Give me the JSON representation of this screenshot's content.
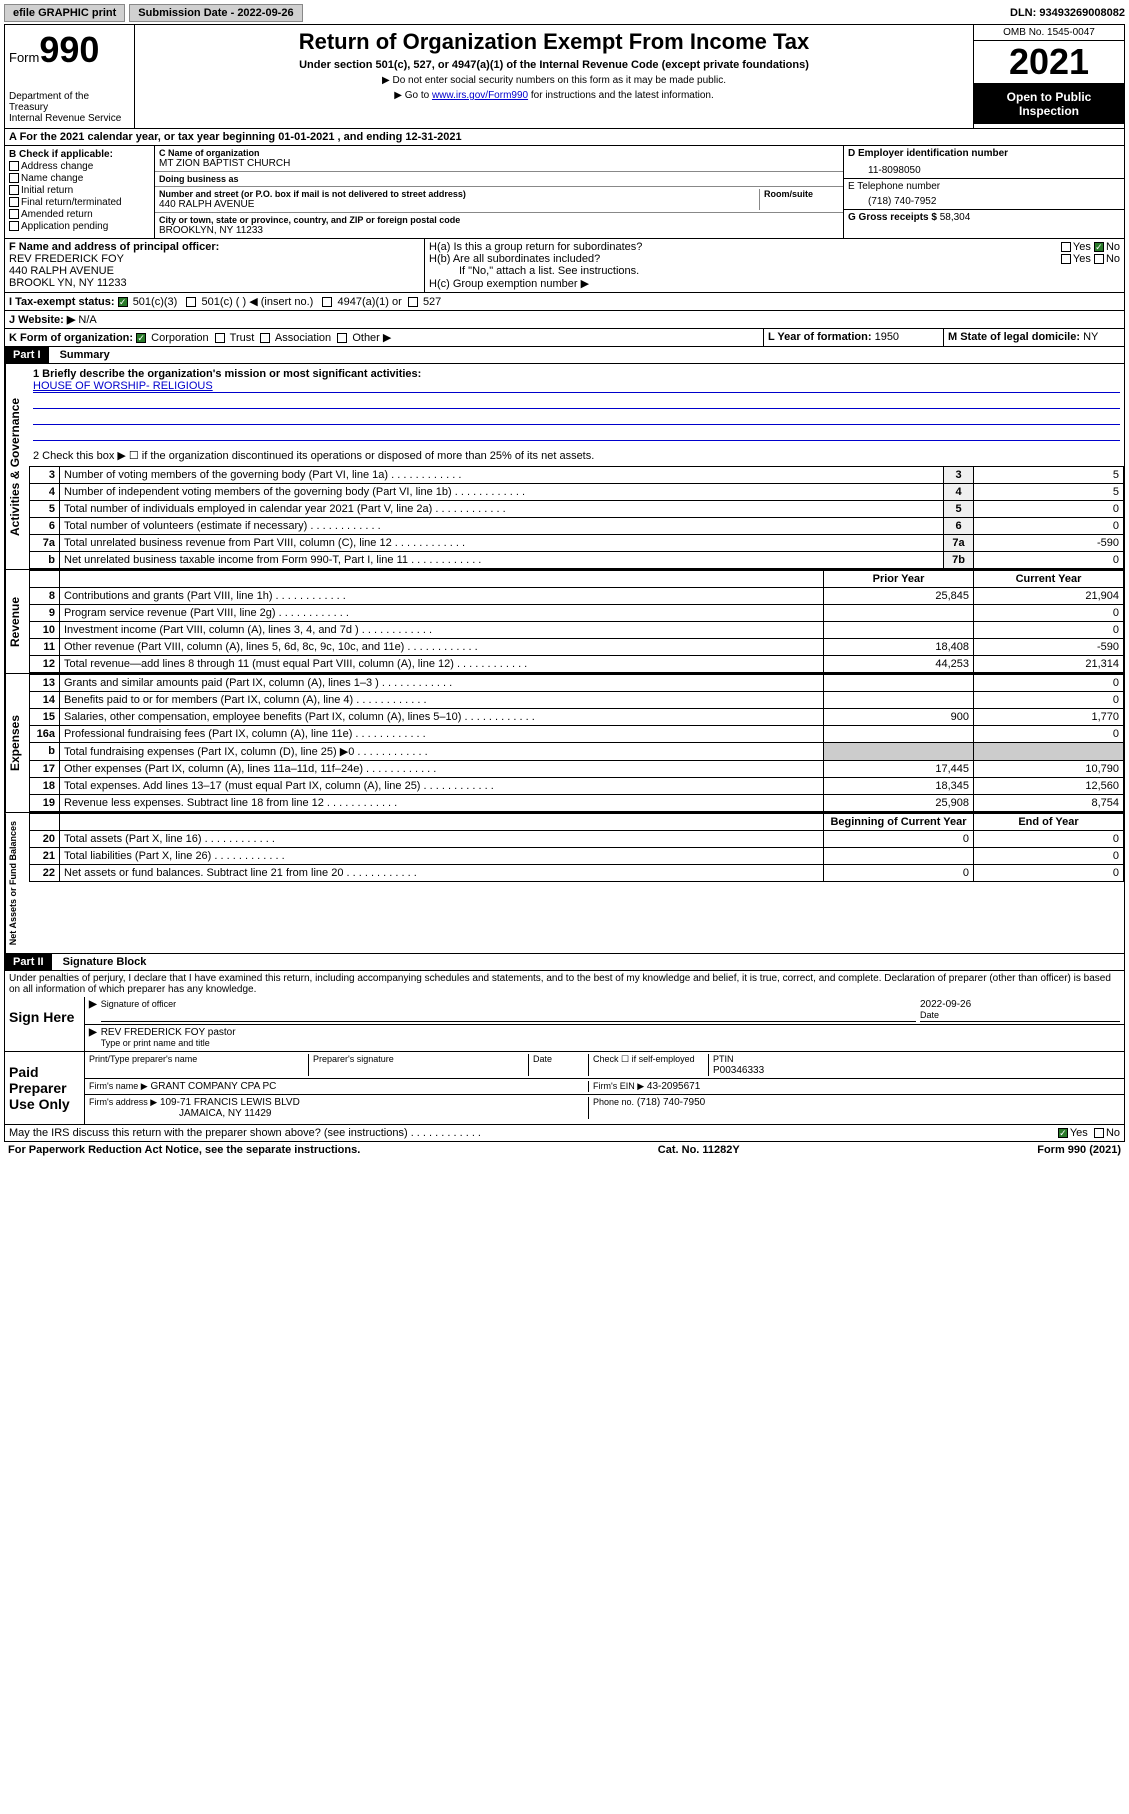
{
  "topbar": {
    "efile": "efile GRAPHIC print",
    "submission_label": "Submission Date - 2022-09-26",
    "dln": "DLN: 93493269008082"
  },
  "header": {
    "form_prefix": "Form",
    "form_number": "990",
    "title": "Return of Organization Exempt From Income Tax",
    "subtitle": "Under section 501(c), 527, or 4947(a)(1) of the Internal Revenue Code (except private foundations)",
    "note1": "▶ Do not enter social security numbers on this form as it may be made public.",
    "note2_prefix": "▶ Go to ",
    "note2_link": "www.irs.gov/Form990",
    "note2_suffix": " for instructions and the latest information.",
    "dept": "Department of the Treasury\nInternal Revenue Service",
    "omb": "OMB No. 1545-0047",
    "year": "2021",
    "inspection": "Open to Public Inspection"
  },
  "sectionA": {
    "text": "A For the 2021 calendar year, or tax year beginning 01-01-2021   , and ending 12-31-2021"
  },
  "sectionB": {
    "label": "B Check if applicable:",
    "items": [
      "Address change",
      "Name change",
      "Initial return",
      "Final return/terminated",
      "Amended return",
      "Application pending"
    ]
  },
  "sectionC": {
    "name_label": "C Name of organization",
    "name": "MT ZION BAPTIST CHURCH",
    "dba_label": "Doing business as",
    "dba": "",
    "addr_label": "Number and street (or P.O. box if mail is not delivered to street address)",
    "room_label": "Room/suite",
    "addr": "440 RALPH AVENUE",
    "city_label": "City or town, state or province, country, and ZIP or foreign postal code",
    "city": "BROOKLYN, NY  11233"
  },
  "sectionD": {
    "label": "D Employer identification number",
    "value": "11-8098050"
  },
  "sectionE": {
    "label": "E Telephone number",
    "value": "(718) 740-7952"
  },
  "sectionF": {
    "label": "F Name and address of principal officer:",
    "name": "REV FREDERICK FOY",
    "addr1": "440 RALPH AVENUE",
    "addr2": "BROOKL YN, NY  11233"
  },
  "sectionG": {
    "label": "G Gross receipts $",
    "value": "58,304"
  },
  "sectionH": {
    "a_label": "H(a)  Is this a group return for subordinates?",
    "a_yes": "Yes",
    "a_no": "No",
    "b_label": "H(b)  Are all subordinates included?",
    "b_note": "If \"No,\" attach a list. See instructions.",
    "c_label": "H(c)  Group exemption number ▶"
  },
  "sectionI": {
    "label": "I    Tax-exempt status:",
    "opts": [
      "501(c)(3)",
      "501(c) (  ) ◀ (insert no.)",
      "4947(a)(1) or",
      "527"
    ]
  },
  "sectionJ": {
    "label": "J   Website: ▶",
    "value": "N/A"
  },
  "sectionK": {
    "label": "K Form of organization:",
    "opts": [
      "Corporation",
      "Trust",
      "Association",
      "Other ▶"
    ]
  },
  "sectionL": {
    "label": "L Year of formation:",
    "value": "1950"
  },
  "sectionM": {
    "label": "M State of legal domicile:",
    "value": "NY"
  },
  "part1": {
    "header": "Part I",
    "title": "Summary",
    "line1_label": "1  Briefly describe the organization's mission or most significant activities:",
    "line1_value": "HOUSE OF WORSHIP- RELIGIOUS",
    "line2": "2   Check this box ▶ ☐  if the organization discontinued its operations or disposed of more than 25% of its net assets.",
    "rows_gov": [
      {
        "n": "3",
        "t": "Number of voting members of the governing body (Part VI, line 1a)",
        "l": "3",
        "v": "5"
      },
      {
        "n": "4",
        "t": "Number of independent voting members of the governing body (Part VI, line 1b)",
        "l": "4",
        "v": "5"
      },
      {
        "n": "5",
        "t": "Total number of individuals employed in calendar year 2021 (Part V, line 2a)",
        "l": "5",
        "v": "0"
      },
      {
        "n": "6",
        "t": "Total number of volunteers (estimate if necessary)",
        "l": "6",
        "v": "0"
      },
      {
        "n": "7a",
        "t": "Total unrelated business revenue from Part VIII, column (C), line 12",
        "l": "7a",
        "v": "-590"
      },
      {
        "n": "b",
        "t": "Net unrelated business taxable income from Form 990-T, Part I, line 11",
        "l": "7b",
        "v": "0"
      }
    ],
    "hdr_prior": "Prior Year",
    "hdr_current": "Current Year",
    "rows_rev": [
      {
        "n": "8",
        "t": "Contributions and grants (Part VIII, line 1h)",
        "p": "25,845",
        "c": "21,904"
      },
      {
        "n": "9",
        "t": "Program service revenue (Part VIII, line 2g)",
        "p": "",
        "c": "0"
      },
      {
        "n": "10",
        "t": "Investment income (Part VIII, column (A), lines 3, 4, and 7d )",
        "p": "",
        "c": "0"
      },
      {
        "n": "11",
        "t": "Other revenue (Part VIII, column (A), lines 5, 6d, 8c, 9c, 10c, and 11e)",
        "p": "18,408",
        "c": "-590"
      },
      {
        "n": "12",
        "t": "Total revenue—add lines 8 through 11 (must equal Part VIII, column (A), line 12)",
        "p": "44,253",
        "c": "21,314"
      }
    ],
    "rows_exp": [
      {
        "n": "13",
        "t": "Grants and similar amounts paid (Part IX, column (A), lines 1–3 )",
        "p": "",
        "c": "0"
      },
      {
        "n": "14",
        "t": "Benefits paid to or for members (Part IX, column (A), line 4)",
        "p": "",
        "c": "0"
      },
      {
        "n": "15",
        "t": "Salaries, other compensation, employee benefits (Part IX, column (A), lines 5–10)",
        "p": "900",
        "c": "1,770"
      },
      {
        "n": "16a",
        "t": "Professional fundraising fees (Part IX, column (A), line 11e)",
        "p": "",
        "c": "0"
      },
      {
        "n": "b",
        "t": "Total fundraising expenses (Part IX, column (D), line 25) ▶0",
        "p": "shade",
        "c": "shade"
      },
      {
        "n": "17",
        "t": "Other expenses (Part IX, column (A), lines 11a–11d, 11f–24e)",
        "p": "17,445",
        "c": "10,790"
      },
      {
        "n": "18",
        "t": "Total expenses. Add lines 13–17 (must equal Part IX, column (A), line 25)",
        "p": "18,345",
        "c": "12,560"
      },
      {
        "n": "19",
        "t": "Revenue less expenses. Subtract line 18 from line 12",
        "p": "25,908",
        "c": "8,754"
      }
    ],
    "hdr_begin": "Beginning of Current Year",
    "hdr_end": "End of Year",
    "rows_net": [
      {
        "n": "20",
        "t": "Total assets (Part X, line 16)",
        "p": "0",
        "c": "0"
      },
      {
        "n": "21",
        "t": "Total liabilities (Part X, line 26)",
        "p": "",
        "c": "0"
      },
      {
        "n": "22",
        "t": "Net assets or fund balances. Subtract line 21 from line 20",
        "p": "0",
        "c": "0"
      }
    ]
  },
  "part2": {
    "header": "Part II",
    "title": "Signature Block",
    "declaration": "Under penalties of perjury, I declare that I have examined this return, including accompanying schedules and statements, and to the best of my knowledge and belief, it is true, correct, and complete. Declaration of preparer (other than officer) is based on all information of which preparer has any knowledge.",
    "sign_here": "Sign Here",
    "sig_officer": "Signature of officer",
    "sig_date": "2022-09-26",
    "date_label": "Date",
    "officer_name": "REV FREDERICK FOY pastor",
    "officer_name_label": "Type or print name and title",
    "paid": "Paid Preparer Use Only",
    "prep_name_label": "Print/Type preparer's name",
    "prep_sig_label": "Preparer's signature",
    "check_label": "Check ☐ if self-employed",
    "ptin_label": "PTIN",
    "ptin": "P00346333",
    "firm_name_label": "Firm's name   ▶",
    "firm_name": "GRANT COMPANY CPA PC",
    "firm_ein_label": "Firm's EIN ▶",
    "firm_ein": "43-2095671",
    "firm_addr_label": "Firm's address ▶",
    "firm_addr1": "109-71 FRANCIS LEWIS BLVD",
    "firm_addr2": "JAMAICA, NY  11429",
    "phone_label": "Phone no.",
    "phone": "(718) 740-7950",
    "discuss": "May the IRS discuss this return with the preparer shown above? (see instructions)",
    "yes": "Yes",
    "no": "No"
  },
  "footer": {
    "left": "For Paperwork Reduction Act Notice, see the separate instructions.",
    "mid": "Cat. No. 11282Y",
    "right": "Form 990 (2021)"
  },
  "labels": {
    "gov": "Activities & Governance",
    "rev": "Revenue",
    "exp": "Expenses",
    "net": "Net Assets or Fund Balances"
  }
}
